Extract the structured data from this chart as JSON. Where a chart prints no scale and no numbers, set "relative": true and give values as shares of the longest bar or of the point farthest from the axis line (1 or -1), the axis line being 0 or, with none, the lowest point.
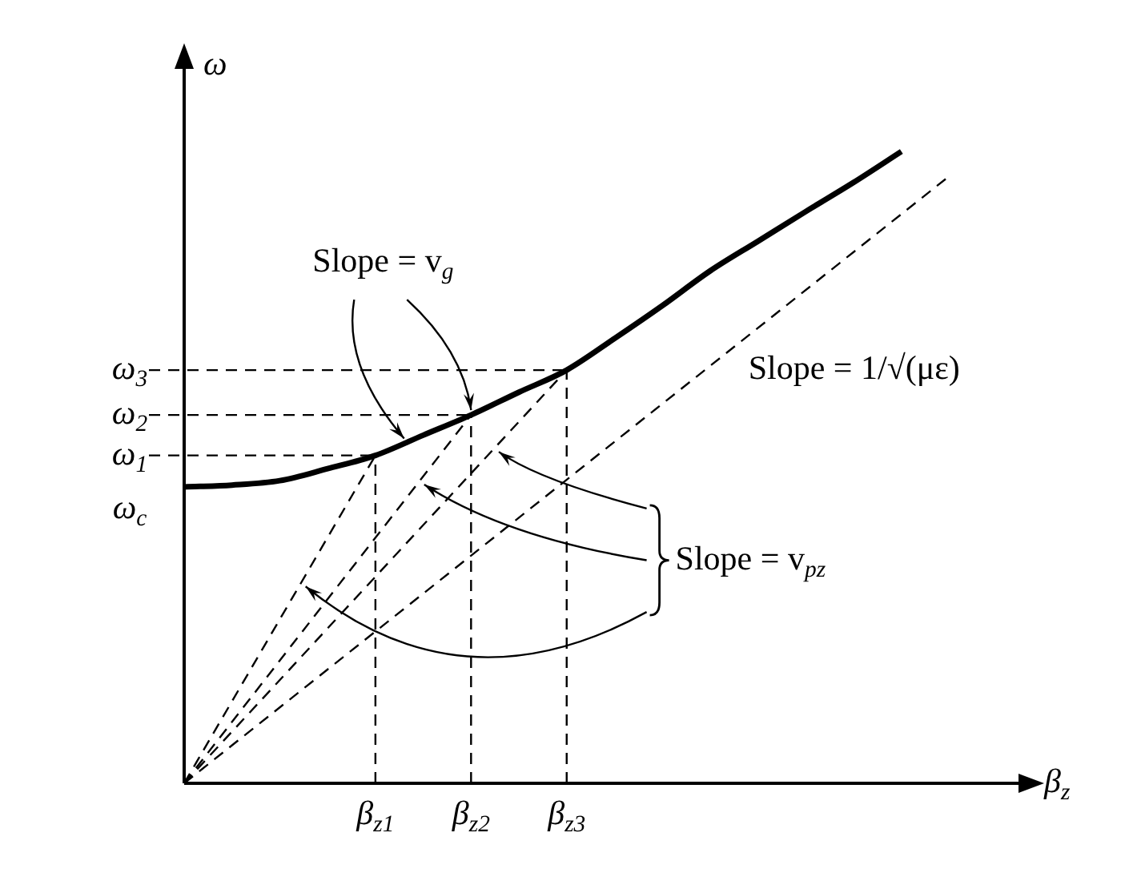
{
  "chart_data": {
    "type": "line",
    "relative": true,
    "xlabel": "β$_{z}$",
    "ylabel": "ω",
    "legend": false,
    "marker": "none",
    "categories": [
      null,
      null,
      null,
      null,
      "β$_{z1}$",
      null,
      "β$_{z2}$",
      null,
      "β$_{z3}$",
      null,
      null,
      null,
      null,
      null,
      null,
      null,
      null
    ],
    "series": [
      {
        "color": "#000000",
        "line_style": "solid",
        "values": [
          0.469,
          0.472,
          0.479,
          0.498,
          0.519,
          0.551,
          0.583,
          0.619,
          0.654,
          0.704,
          0.756,
          0.811,
          0.858,
          0.905,
          0.951,
          1.0,
          null
        ]
      },
      {
        "color": "#000000",
        "line_style": "dashed",
        "values": [
          0,
          null,
          null,
          null,
          null,
          null,
          null,
          null,
          null,
          null,
          null,
          null,
          null,
          null,
          null,
          null,
          0.961
        ]
      },
      {
        "color": "#000000",
        "line_style": "dashed",
        "values": [
          0,
          null,
          null,
          null,
          0.519,
          null,
          null,
          null,
          null,
          null,
          null,
          null,
          null,
          null,
          null,
          null,
          null
        ]
      },
      {
        "color": "#000000",
        "line_style": "dashed",
        "values": [
          0,
          null,
          null,
          null,
          null,
          null,
          0.583,
          null,
          null,
          null,
          null,
          null,
          null,
          null,
          null,
          null,
          null
        ]
      },
      {
        "color": "#000000",
        "line_style": "dashed",
        "values": [
          0,
          null,
          null,
          null,
          null,
          null,
          null,
          null,
          0.654,
          null,
          null,
          null,
          null,
          null,
          null,
          null,
          null
        ]
      }
    ],
    "ref_lines": [
      {
        "axis": "x",
        "value": "β$_{z1}$",
        "line_style": "dashed"
      },
      {
        "axis": "x",
        "value": "β$_{z2}$",
        "line_style": "dashed"
      },
      {
        "axis": "x",
        "value": "β$_{z3}$",
        "line_style": "dashed"
      },
      {
        "axis": "y",
        "value": 0.519,
        "label": "ω$_{1}$",
        "line_style": "dashed"
      },
      {
        "axis": "y",
        "value": 0.583,
        "label": "ω$_{2}$",
        "line_style": "dashed"
      },
      {
        "axis": "y",
        "value": 0.654,
        "label": "ω$_{3}$",
        "line_style": "dashed"
      }
    ],
    "annotations": [
      "ω$_{c}$",
      {
        "text": "Slope = v$_{g}$",
        "x": "β$_{z2}$",
        "y": 0.583
      },
      "Slope = 1/√(με)",
      "Slope = v$_{pz}$"
    ]
  }
}
